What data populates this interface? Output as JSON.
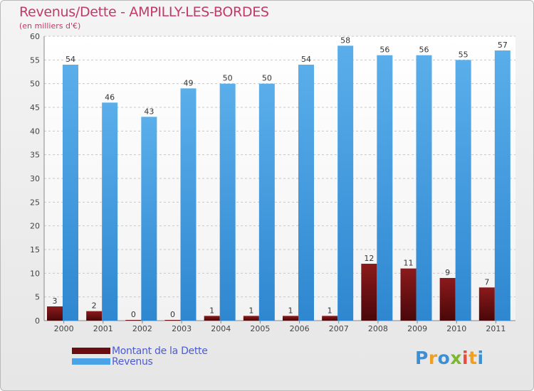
{
  "title": "Revenus/Dette - AMPILLY-LES-BORDES",
  "subtitle": "(en milliers d'€)",
  "legend": [
    {
      "label": "Montant de la Dette",
      "color": "#6b0d10"
    },
    {
      "label": "Revenus",
      "color": "#4aa3e6"
    }
  ],
  "logo": {
    "text": "Proxiti",
    "letters": [
      {
        "ch": "P",
        "color": "#3d8fd4"
      },
      {
        "ch": "r",
        "color": "#f0a020"
      },
      {
        "ch": "o",
        "color": "#3d8fd4"
      },
      {
        "ch": "x",
        "color": "#7cb82f"
      },
      {
        "ch": "i",
        "color": "#e94b3c"
      },
      {
        "ch": "t",
        "color": "#f0a020"
      },
      {
        "ch": "i",
        "color": "#3d8fd4"
      }
    ]
  },
  "colors": {
    "dette_top": "#8b1a1c",
    "dette_bottom": "#4a0709",
    "revenus_top": "#5aaeea",
    "revenus_bottom": "#2e87d0",
    "grid": "#c8c8c8"
  },
  "chart_data": {
    "type": "bar",
    "categories": [
      "2000",
      "2001",
      "2002",
      "2003",
      "2004",
      "2005",
      "2006",
      "2007",
      "2008",
      "2009",
      "2010",
      "2011"
    ],
    "series": [
      {
        "name": "Montant de la Dette",
        "values": [
          3,
          2,
          0,
          0,
          1,
          1,
          1,
          1,
          12,
          11,
          9,
          7
        ]
      },
      {
        "name": "Revenus",
        "values": [
          54,
          46,
          43,
          49,
          50,
          50,
          54,
          58,
          56,
          56,
          55,
          57
        ]
      }
    ],
    "ylim": [
      0,
      60
    ],
    "yticks": [
      0,
      5,
      10,
      15,
      20,
      25,
      30,
      35,
      40,
      45,
      50,
      55,
      60
    ],
    "grid": true,
    "legend_position": "bottom-left",
    "title": "Revenus/Dette - AMPILLY-LES-BORDES",
    "ylabel": "(en milliers d'€)"
  }
}
